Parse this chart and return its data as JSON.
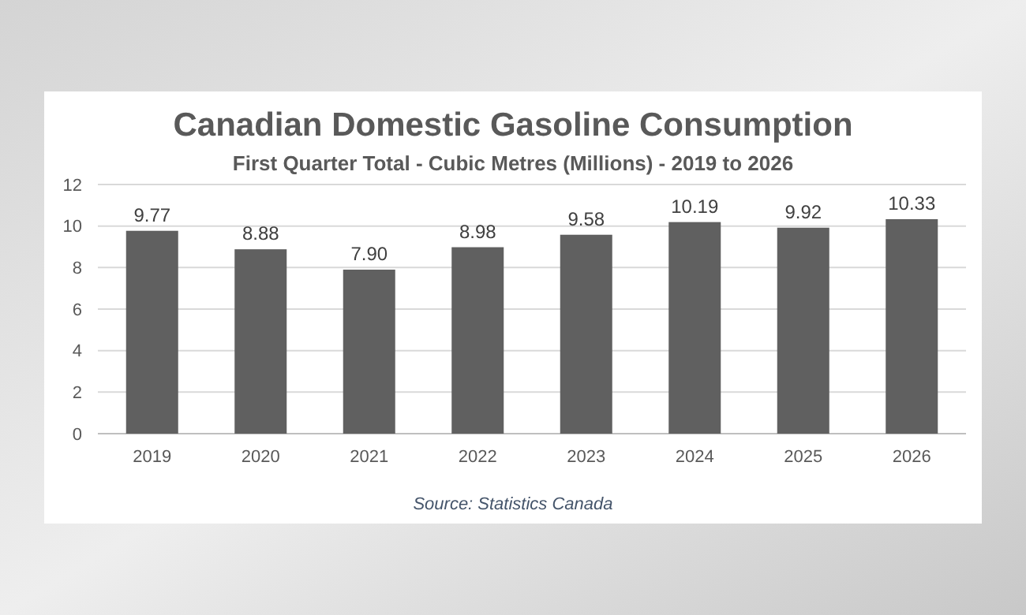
{
  "chart_data": {
    "type": "bar",
    "title": "Canadian Domestic Gasoline Consumption",
    "subtitle": "First Quarter Total - Cubic Metres (Millions) - 2019 to 2026",
    "categories": [
      "2019",
      "2020",
      "2021",
      "2022",
      "2023",
      "2024",
      "2025",
      "2026"
    ],
    "values": [
      9.77,
      8.88,
      7.9,
      8.98,
      9.58,
      10.19,
      9.92,
      10.33
    ],
    "value_labels": [
      "9.77",
      "8.88",
      "7.90",
      "8.98",
      "9.58",
      "10.19",
      "9.92",
      "10.33"
    ],
    "color": "#606060",
    "ylim": [
      0,
      12
    ],
    "yticks": [
      0,
      2,
      4,
      6,
      8,
      10,
      12
    ],
    "grid": "y",
    "annotations": [
      "Source: Statistics Canada"
    ]
  }
}
